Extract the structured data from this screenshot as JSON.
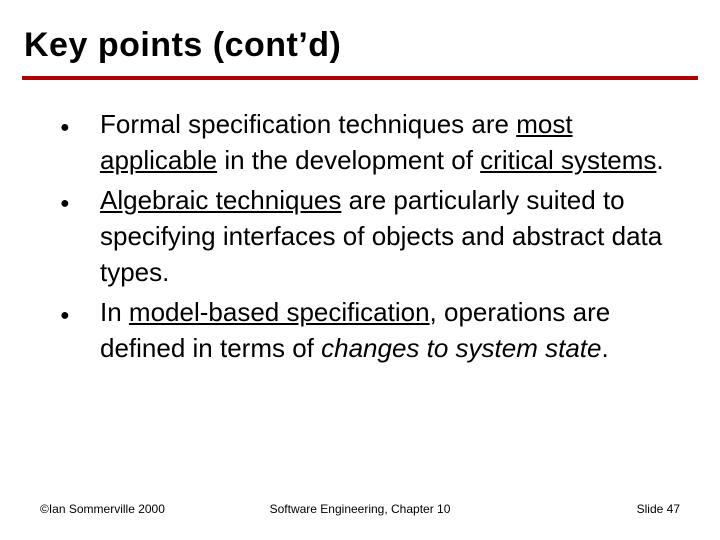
{
  "title": "Key points (cont’d)",
  "rule_color": "#b00000",
  "items": [
    {
      "pre": "Formal specification techniques are ",
      "u1": "most applicable",
      "mid1": " in the development of ",
      "u2": "critical systems",
      "post": "."
    },
    {
      "pre": "",
      "u1": "Algebraic techniques",
      "mid1": " are particularly suited to specifying interfaces of objects and abstract data types.",
      "u2": "",
      "post": ""
    },
    {
      "pre": "In ",
      "u1": "model-based specification",
      "mid1": ", operations are defined in terms of ",
      "i1": "changes to system state",
      "post": "."
    }
  ],
  "footer": {
    "left": "©Ian Sommerville 2000",
    "center": "Software Engineering, Chapter 10",
    "right": "Slide  47"
  }
}
